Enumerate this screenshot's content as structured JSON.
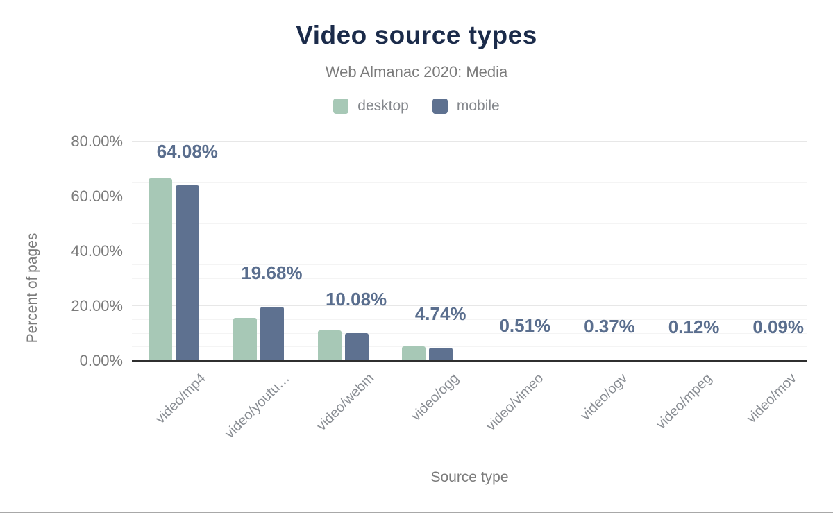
{
  "chart_data": {
    "type": "bar",
    "title": "Video source types",
    "subtitle": "Web Almanac 2020: Media",
    "xlabel": "Source type",
    "ylabel": "Percent of pages",
    "categories": [
      "video/mp4",
      "video/youtu…",
      "video/webm",
      "video/ogg",
      "video/vimeo",
      "video/ogv",
      "video/mpeg",
      "video/mov"
    ],
    "series": [
      {
        "name": "desktop",
        "color": "#a7c8b6",
        "values": [
          66.5,
          15.6,
          11.1,
          5.3,
          0.6,
          0.5,
          0.15,
          0.1
        ]
      },
      {
        "name": "mobile",
        "color": "#5e7190",
        "values": [
          64.08,
          19.68,
          10.08,
          4.74,
          0.51,
          0.37,
          0.12,
          0.09
        ]
      }
    ],
    "bar_value_labels": [
      "64.08%",
      "19.68%",
      "10.08%",
      "4.74%",
      "0.51%",
      "0.37%",
      "0.12%",
      "0.09%"
    ],
    "labeled_series": "mobile",
    "y_axis": {
      "max": 80,
      "ticks": [
        {
          "label": "0.00%",
          "value": 0
        },
        {
          "label": "20.00%",
          "value": 20
        },
        {
          "label": "40.00%",
          "value": 40
        },
        {
          "label": "60.00%",
          "value": 60
        },
        {
          "label": "80.00%",
          "value": 80
        }
      ]
    },
    "grid": true,
    "legend_position": "top"
  },
  "colors": {
    "title_text": "#1b2b4a",
    "muted_text": "#7b7b7b",
    "category_text": "#898d93",
    "value_label_text": "#5a6e8e",
    "desktop_bar": "#a7c8b6",
    "mobile_bar": "#5e7190",
    "axis_line": "#2f2f2f",
    "gridline_major": "#e7e7e7",
    "gridline_minor": "#f4f4f4",
    "bottom_rule": "#a8a8a8"
  }
}
